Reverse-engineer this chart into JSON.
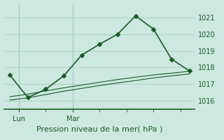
{
  "xlabel": "Pression niveau de la mer( hPa )",
  "bg_color": "#cce8e0",
  "grid_color": "#aad4c8",
  "line_color": "#1a5c28",
  "tick_label_color": "#1a5c28",
  "ylim": [
    1015.5,
    1021.8
  ],
  "yticks": [
    1016,
    1017,
    1018,
    1019,
    1020,
    1021
  ],
  "xlim": [
    -0.3,
    10.3
  ],
  "xtick_positions": [
    0.5,
    3.5
  ],
  "xtick_labels": [
    "Lun",
    "Mar"
  ],
  "main_x": [
    0,
    1,
    2,
    3,
    4,
    5,
    6,
    7,
    8,
    9,
    10
  ],
  "main_y": [
    1017.55,
    1016.2,
    1016.7,
    1017.5,
    1018.75,
    1019.4,
    1020.0,
    1021.1,
    1020.3,
    1018.5,
    1017.8
  ],
  "band1_x": [
    0,
    1,
    2,
    3,
    4,
    5,
    6,
    7,
    8,
    9,
    10
  ],
  "band1_y": [
    1016.05,
    1016.18,
    1016.38,
    1016.58,
    1016.75,
    1016.92,
    1017.08,
    1017.22,
    1017.38,
    1017.5,
    1017.62
  ],
  "band2_x": [
    0,
    1,
    2,
    3,
    4,
    5,
    6,
    7,
    8,
    9,
    10
  ],
  "band2_y": [
    1016.25,
    1016.4,
    1016.6,
    1016.78,
    1016.95,
    1017.12,
    1017.28,
    1017.42,
    1017.56,
    1017.66,
    1017.78
  ],
  "vline_positions": [
    0.5,
    3.5
  ],
  "marker_size": 3,
  "linewidth_main": 1.2,
  "linewidth_band": 0.8,
  "xlabel_fontsize": 8,
  "tick_fontsize": 7
}
